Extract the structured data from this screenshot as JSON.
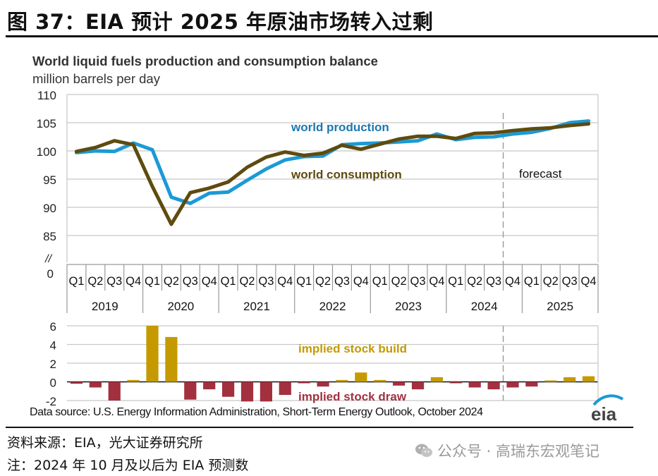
{
  "figure": {
    "title": "图 37：EIA 预计 2025 年原油市场转入过剩",
    "source_note": "资料来源：EIA，光大证券研究所",
    "forecast_note": "注：2024 年 10 月及以后为 EIA 预测数",
    "watermark": "公众号 · 高瑞东宏观笔记",
    "watermark_icon": "wechat-icon",
    "logo_text": "eia"
  },
  "colors": {
    "production": "#1b9ad6",
    "consumption": "#5e4b0e",
    "build": "#c49a00",
    "draw": "#a3303f",
    "grid": "#c8c8c8",
    "production_label": "#1a78b0",
    "consumption_label": "#5e4b0e"
  },
  "chart_data": [
    {
      "type": "line",
      "title": "World liquid fuels production and consumption balance",
      "subtitle": "million barrels per day",
      "ylabel": "million barrels per day",
      "ylim": [
        85,
        110
      ],
      "yticks": [
        "110",
        "105",
        "100",
        "95",
        "90",
        "85"
      ],
      "ybreak_label": "//",
      "yzero_label": "0",
      "grid": true,
      "quarters": [
        "Q1",
        "Q2",
        "Q3",
        "Q4",
        "Q1",
        "Q2",
        "Q3",
        "Q4",
        "Q1",
        "Q2",
        "Q3",
        "Q4",
        "Q1",
        "Q2",
        "Q3",
        "Q4",
        "Q1",
        "Q2",
        "Q3",
        "Q4",
        "Q1",
        "Q2",
        "Q3",
        "Q4",
        "Q1",
        "Q2",
        "Q3",
        "Q4"
      ],
      "years": [
        "2019",
        "2020",
        "2021",
        "2022",
        "2023",
        "2024",
        "2025"
      ],
      "series": [
        {
          "name": "world production",
          "values": [
            99.7,
            100.0,
            99.9,
            101.4,
            100.2,
            91.8,
            90.7,
            92.5,
            92.7,
            94.8,
            96.8,
            98.4,
            99.0,
            99.1,
            101.1,
            101.3,
            101.4,
            101.6,
            101.8,
            103.0,
            102.0,
            102.4,
            102.5,
            103.0,
            103.3,
            104.0,
            105.0,
            105.3
          ]
        },
        {
          "name": "world consumption",
          "values": [
            99.9,
            100.6,
            101.8,
            101.1,
            93.7,
            87.0,
            92.6,
            93.4,
            94.5,
            97.1,
            98.9,
            99.8,
            99.2,
            99.6,
            101.0,
            100.3,
            101.2,
            102.1,
            102.6,
            102.6,
            102.2,
            103.1,
            103.2,
            103.6,
            103.9,
            104.1,
            104.5,
            104.8
          ]
        }
      ],
      "annotations": [
        "world production",
        "world consumption",
        "forecast"
      ],
      "forecast_start_index": 23
    },
    {
      "type": "bar",
      "ylim": [
        -2,
        6
      ],
      "yticks": [
        "6",
        "4",
        "2",
        "0",
        "-2"
      ],
      "grid": true,
      "values": [
        -0.2,
        -0.6,
        -2.0,
        0.2,
        6.0,
        4.8,
        -1.9,
        -0.8,
        -1.6,
        -2.1,
        -2.1,
        -1.4,
        -0.15,
        -0.5,
        0.2,
        1.0,
        0.2,
        -0.4,
        -0.8,
        0.5,
        -0.15,
        -0.6,
        -0.8,
        -0.6,
        -0.5,
        0.15,
        0.5,
        0.6
      ],
      "annotations": [
        "implied stock  build",
        "implied stock draw"
      ],
      "source": "Data source: U.S. Energy Information Administration, Short-Term Energy Outlook, October 2024"
    }
  ]
}
